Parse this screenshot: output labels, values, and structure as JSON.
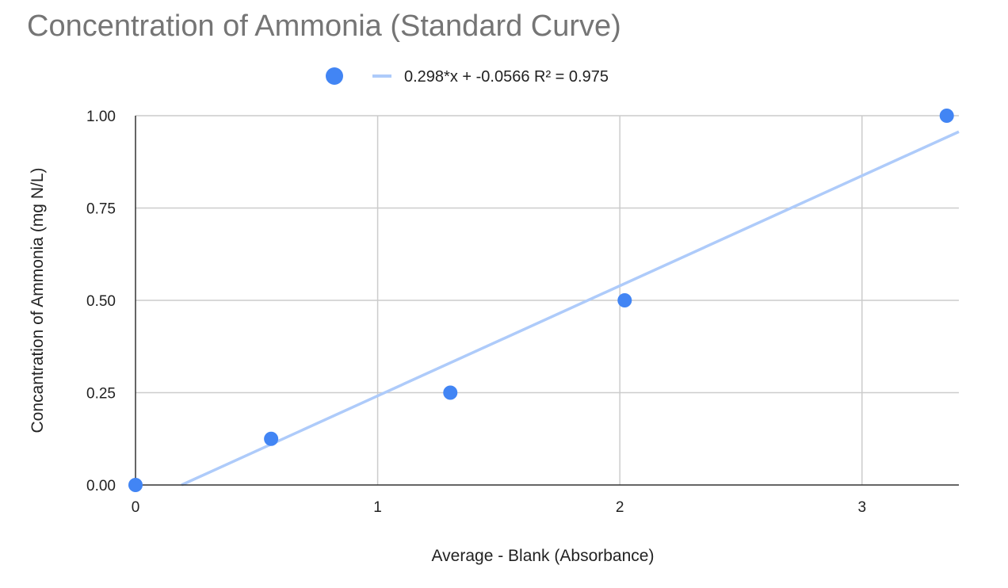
{
  "chart_data": {
    "type": "scatter",
    "title": "Concentration of Ammonia (Standard Curve)",
    "xlabel": "Average - Blank (Absorbance)",
    "ylabel": "Concantration of Ammonia (mg N/L)",
    "xlim": [
      0,
      3.4
    ],
    "ylim": [
      0,
      1
    ],
    "x_ticks": [
      0,
      1,
      2,
      3
    ],
    "x_tick_labels": [
      "0",
      "1",
      "2",
      "3"
    ],
    "y_ticks": [
      0,
      0.25,
      0.5,
      0.75,
      1.0
    ],
    "y_tick_labels": [
      "0.00",
      "0.25",
      "0.50",
      "0.75",
      "1.00"
    ],
    "grid": true,
    "legend_position": "top",
    "series": [
      {
        "x": [
          0,
          0.56,
          1.3,
          2.02,
          3.35
        ],
        "y": [
          0,
          0.125,
          0.25,
          0.5,
          1.0
        ],
        "color": "#4285f4"
      }
    ],
    "trendline": {
      "slope": 0.298,
      "intercept": -0.0566,
      "label": "0.298*x + -0.0566 R² = 0.975",
      "color": "#aecbfa"
    }
  }
}
